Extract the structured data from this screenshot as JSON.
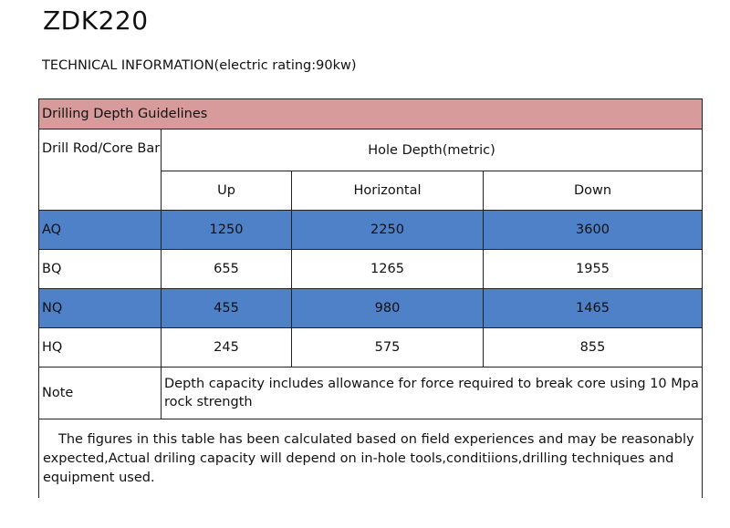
{
  "title": "ZDK220",
  "subtitle": "TECHNICAL INFORMATION(electric rating:90kw)",
  "table": {
    "section_header": "Drilling Depth Guidelines",
    "rod_header": "Drill Rod/Core Bar",
    "depth_header": "Hole Depth(metric)",
    "columns": [
      "Up",
      "Horizontal",
      "Down"
    ],
    "rows": [
      {
        "rod": "AQ",
        "up": "1250",
        "horizontal": "2250",
        "down": "3600",
        "highlight": true
      },
      {
        "rod": "BQ",
        "up": "655",
        "horizontal": "1265",
        "down": "1955",
        "highlight": false
      },
      {
        "rod": "NQ",
        "up": "455",
        "horizontal": "980",
        "down": "1465",
        "highlight": true
      },
      {
        "rod": "HQ",
        "up": "245",
        "horizontal": "575",
        "down": "855",
        "highlight": false
      }
    ],
    "note_label": "Note",
    "note_text": "Depth capacity includes allowance for force required to break core using 10 Mpa rock strength",
    "footer": "The figures in this table has been calculated based on field experiences and may be reasonably expected,Actual driling capacity will depend on in-hole tools,conditiions,drilling techniques and equipment used."
  },
  "colors": {
    "header_fill": "#d89b9b",
    "highlight_fill": "#4f81c9",
    "border": "#222222"
  }
}
